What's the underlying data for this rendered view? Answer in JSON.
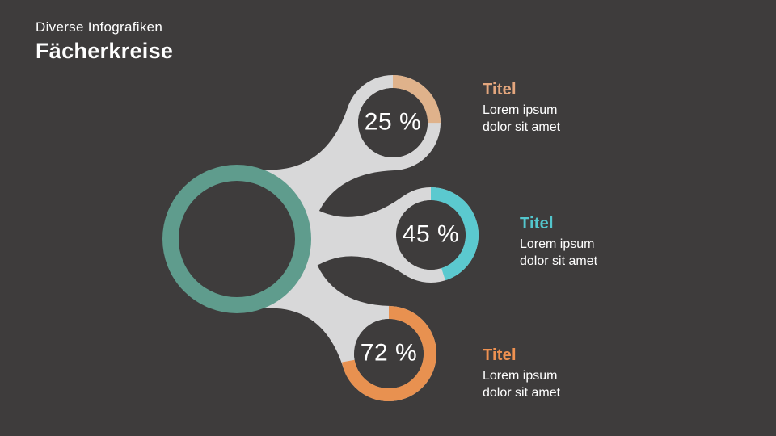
{
  "slide": {
    "subtitle": "Diverse Infografiken",
    "title": "Fächerkreise"
  },
  "colors": {
    "background": "#3e3c3c",
    "connector": "#d8d8d9",
    "hub_ring": "#5f9c8d",
    "text": "#ffffff"
  },
  "chart_data": {
    "type": "pie",
    "variant": "donut-gauge-fan",
    "title": "Fächerkreise",
    "legend_position": "right",
    "items": [
      {
        "value": 25,
        "value_label": "25 %",
        "arc_color": "#dfb28b",
        "title": "Titel",
        "title_color": "#e3a67d",
        "description": "Lorem ipsum dolor sit amet"
      },
      {
        "value": 45,
        "value_label": "45 %",
        "arc_color": "#5bc9cf",
        "title": "Titel",
        "title_color": "#53c6cd",
        "description": "Lorem ipsum dolor sit amet"
      },
      {
        "value": 72,
        "value_label": "72 %",
        "arc_color": "#e89150",
        "title": "Titel",
        "title_color": "#ee9151",
        "description": "Lorem ipsum dolor sit amet"
      }
    ]
  }
}
